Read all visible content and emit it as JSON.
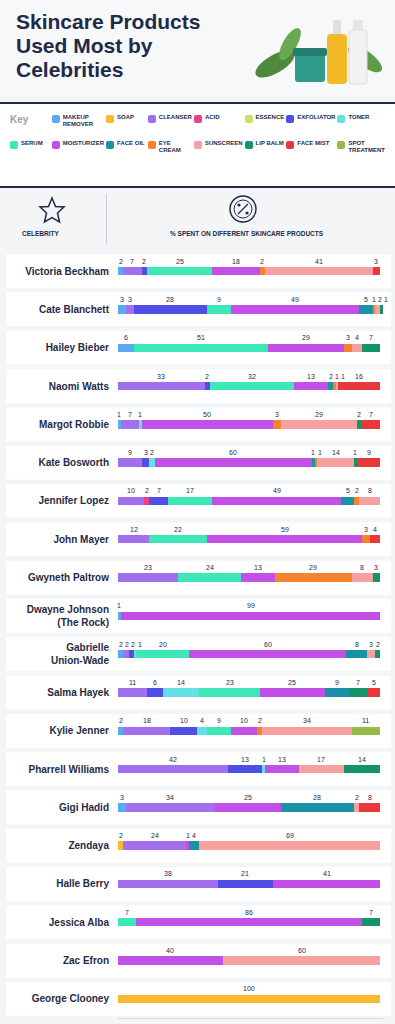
{
  "chart_data": {
    "type": "bar",
    "title": "Skincare Products Used Most by Celebrities",
    "legend_title": "Key",
    "column_headers": [
      "CELEBRITY",
      "% SPENT ON DIFFERENT SKINCARE PRODUCTS"
    ],
    "orientation": "horizontal",
    "stacked": true,
    "data_labels": true,
    "tick_labels": "y",
    "xlim": [
      0,
      101
    ],
    "categories": [
      "Victoria Beckham",
      "Cate Blanchett",
      "Hailey Bieber",
      "Naomi Watts",
      "Margot Robbie",
      "Kate Bosworth",
      "Jennifer Lopez",
      "John Mayer",
      "Gwyneth Paltrow",
      "Dwayne Johnson (The Rock)",
      "Gabrielle Union-Wade",
      "Salma Hayek",
      "Kylie Jenner",
      "Pharrell Williams",
      "Gigi Hadid",
      "Zendaya",
      "Halle Berry",
      "Jessica Alba",
      "Zac Efron",
      "George Clooney"
    ],
    "series": [
      {
        "name": "MAKEUP REMOVER",
        "color": "#5aaaf0",
        "values": [
          2,
          3,
          6,
          null,
          1,
          null,
          null,
          null,
          null,
          1,
          2,
          null,
          2,
          null,
          3,
          null,
          null,
          null,
          null,
          null
        ]
      },
      {
        "name": "SOAP",
        "color": "#f8b830",
        "values": [
          null,
          null,
          null,
          null,
          null,
          null,
          null,
          null,
          null,
          null,
          null,
          null,
          null,
          null,
          null,
          2,
          null,
          null,
          null,
          100
        ]
      },
      {
        "name": "CLEANSER",
        "color": "#a270ec",
        "values": [
          7,
          3,
          null,
          33,
          7,
          9,
          10,
          12,
          23,
          null,
          2,
          11,
          18,
          42,
          34,
          24,
          38,
          null,
          null,
          null
        ]
      },
      {
        "name": "ACID",
        "color": "#ee3d8e",
        "values": [
          null,
          null,
          null,
          null,
          null,
          null,
          2,
          null,
          null,
          null,
          null,
          null,
          null,
          null,
          null,
          null,
          null,
          null,
          null,
          null
        ]
      },
      {
        "name": "ESSENCE",
        "color": "#c8e26a",
        "values": [
          null,
          null,
          null,
          null,
          null,
          null,
          null,
          null,
          null,
          null,
          null,
          null,
          null,
          null,
          null,
          null,
          null,
          null,
          null,
          null
        ]
      },
      {
        "name": "EXFOLIATOR",
        "color": "#4f4fe6",
        "values": [
          2,
          28,
          null,
          2,
          null,
          3,
          7,
          null,
          null,
          null,
          2,
          6,
          10,
          13,
          null,
          null,
          21,
          null,
          null,
          null
        ]
      },
      {
        "name": "TONER",
        "color": "#62e2e6",
        "values": [
          null,
          null,
          null,
          null,
          1,
          2,
          null,
          null,
          null,
          null,
          1,
          14,
          4,
          1,
          null,
          null,
          null,
          null,
          null,
          null
        ]
      },
      {
        "name": "SERUM",
        "color": "#3de8b6",
        "values": [
          25,
          9,
          51,
          32,
          null,
          null,
          17,
          22,
          24,
          null,
          20,
          23,
          9,
          null,
          null,
          null,
          null,
          7,
          null,
          null
        ]
      },
      {
        "name": "MOISTURIZER",
        "color": "#c24fe6",
        "values": [
          18,
          49,
          29,
          13,
          50,
          60,
          49,
          59,
          13,
          99,
          60,
          25,
          10,
          13,
          25,
          1,
          41,
          86,
          40,
          null
        ]
      },
      {
        "name": "FACE OIL",
        "color": "#1a92a6",
        "values": [
          null,
          5,
          null,
          2,
          null,
          1,
          5,
          null,
          null,
          null,
          8,
          9,
          null,
          null,
          28,
          4,
          null,
          null,
          null,
          null
        ]
      },
      {
        "name": "EYE CREAM",
        "color": "#f5822e",
        "values": [
          2,
          1,
          3,
          1,
          3,
          1,
          2,
          3,
          29,
          null,
          null,
          null,
          2,
          null,
          null,
          null,
          null,
          null,
          null,
          null
        ]
      },
      {
        "name": "SUNSCREEN",
        "color": "#f7a0a0",
        "values": [
          41,
          2,
          4,
          1,
          29,
          14,
          8,
          null,
          8,
          null,
          3,
          null,
          34,
          17,
          2,
          69,
          null,
          null,
          60,
          null
        ]
      },
      {
        "name": "LIP BALM",
        "color": "#13946a",
        "values": [
          null,
          1,
          7,
          null,
          2,
          1,
          null,
          null,
          3,
          null,
          2,
          7,
          null,
          14,
          null,
          null,
          null,
          7,
          null,
          null
        ]
      },
      {
        "name": "FACE MIST",
        "color": "#e8383a",
        "values": [
          3,
          null,
          null,
          16,
          7,
          9,
          null,
          4,
          null,
          null,
          null,
          5,
          null,
          null,
          8,
          null,
          null,
          null,
          null,
          null
        ]
      },
      {
        "name": "SPOT TREATMENT",
        "color": "#95ba48",
        "values": [
          null,
          null,
          null,
          null,
          null,
          null,
          null,
          null,
          null,
          null,
          null,
          null,
          11,
          null,
          null,
          null,
          null,
          null,
          null,
          null
        ]
      }
    ]
  }
}
